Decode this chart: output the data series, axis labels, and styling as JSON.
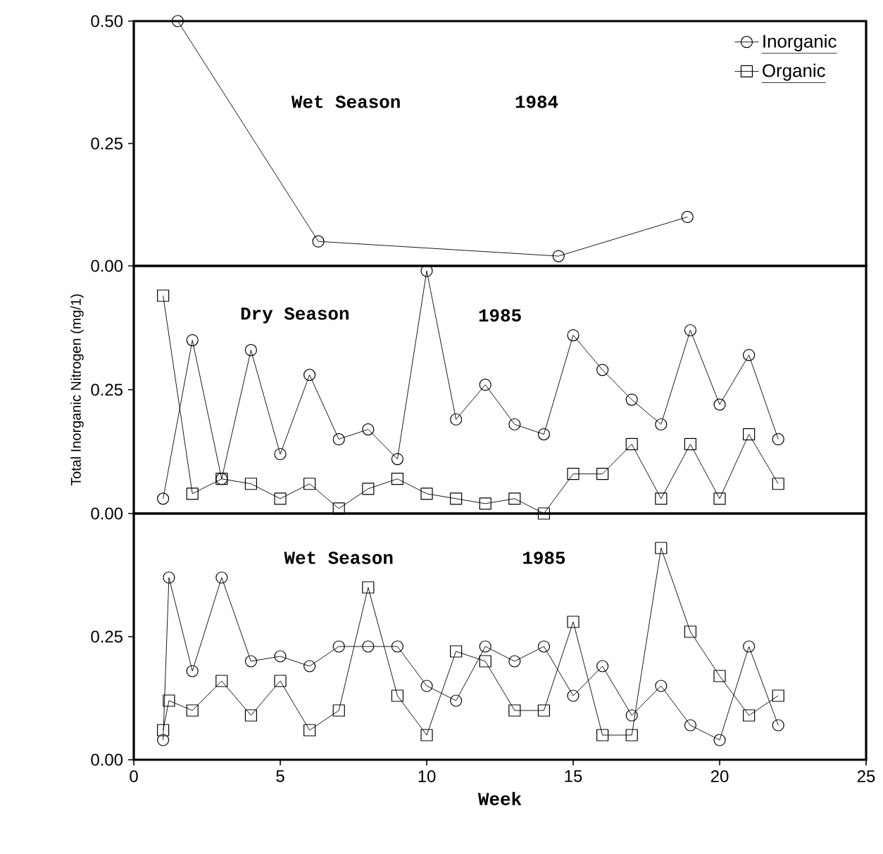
{
  "chart_data": [
    {
      "type": "line",
      "title": "Wet Season",
      "subtitle": "1984",
      "xlim": [
        0,
        25
      ],
      "ylim": [
        0,
        0.5
      ],
      "yticks": [
        {
          "value": 0,
          "label": "0.00"
        },
        {
          "value": 0.25,
          "label": "0.25"
        },
        {
          "value": 0.5,
          "label": "0.50"
        }
      ],
      "xticks": [
        0,
        5,
        10,
        15,
        20,
        25
      ],
      "tick_labels": "y",
      "legend": "top right",
      "series": [
        {
          "name": "Inorganic",
          "color": "#000000",
          "marker": "circle",
          "x": [
            1.5,
            6.3,
            14.5,
            18.9
          ],
          "values": [
            0.5,
            0.05,
            0.02,
            0.1
          ]
        },
        {
          "name": "Organic",
          "color": "#000000",
          "marker": "square"
        }
      ]
    },
    {
      "type": "line",
      "title": "Dry Season",
      "subtitle": "1985",
      "ylabel": "Total Inorganic Nitrogen (mg/1)",
      "xlim": [
        0,
        25
      ],
      "ylim": [
        0,
        0.5
      ],
      "yticks": [
        {
          "value": 0,
          "label": "0.00"
        },
        {
          "value": 0.25,
          "label": "0.25"
        }
      ],
      "xticks": [
        0,
        5,
        10,
        15,
        20,
        25
      ],
      "tick_labels": "y",
      "x": [
        1,
        2,
        3,
        4,
        5,
        6,
        7,
        8,
        9,
        10,
        11,
        12,
        13,
        14,
        15,
        16,
        17,
        18,
        19,
        20,
        21,
        22
      ],
      "series": [
        {
          "color": "#000000",
          "marker": "circle",
          "values": [
            0.03,
            0.35,
            0.07,
            0.33,
            0.12,
            0.28,
            0.15,
            0.17,
            0.11,
            0.49,
            0.19,
            0.26,
            0.18,
            0.16,
            0.36,
            0.29,
            0.23,
            0.18,
            0.37,
            0.22,
            0.32,
            0.15
          ]
        },
        {
          "color": "#000000",
          "marker": "square",
          "values": [
            0.44,
            0.04,
            0.07,
            0.06,
            0.03,
            0.06,
            0.01,
            0.05,
            0.07,
            0.04,
            0.03,
            0.02,
            0.03,
            0.0,
            0.08,
            0.08,
            0.14,
            0.03,
            0.14,
            0.03,
            0.16,
            0.06
          ]
        }
      ]
    },
    {
      "type": "line",
      "title": "Wet Season",
      "subtitle": "1985",
      "xlabel": "Week",
      "xlim": [
        0,
        25
      ],
      "ylim": [
        0,
        0.5
      ],
      "yticks": [
        {
          "value": 0,
          "label": "0.00"
        },
        {
          "value": 0.25,
          "label": "0.25"
        }
      ],
      "xticks": [
        0,
        5,
        10,
        15,
        20,
        25
      ],
      "x": [
        1,
        1.2,
        2,
        3,
        4,
        5,
        6,
        7,
        8,
        9,
        10,
        11,
        12,
        13,
        14,
        15,
        16,
        17,
        18,
        19,
        20,
        21,
        22
      ],
      "series": [
        {
          "color": "#000000",
          "marker": "circle",
          "values": [
            0.04,
            0.37,
            0.18,
            0.37,
            0.2,
            0.21,
            0.19,
            0.23,
            0.23,
            0.23,
            0.15,
            0.12,
            0.23,
            0.2,
            0.23,
            0.13,
            0.19,
            0.09,
            0.15,
            0.07,
            0.04,
            0.23,
            0.07
          ]
        },
        {
          "color": "#000000",
          "marker": "square",
          "values": [
            0.06,
            0.12,
            0.1,
            0.16,
            0.09,
            0.16,
            0.06,
            0.1,
            0.35,
            0.13,
            0.05,
            0.22,
            0.2,
            0.1,
            0.1,
            0.28,
            0.05,
            0.05,
            0.43,
            0.26,
            0.17,
            0.09,
            0.13
          ]
        }
      ]
    }
  ]
}
